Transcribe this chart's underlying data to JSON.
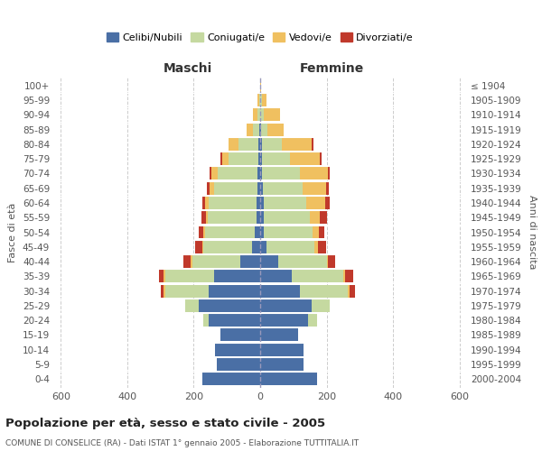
{
  "age_groups": [
    "0-4",
    "5-9",
    "10-14",
    "15-19",
    "20-24",
    "25-29",
    "30-34",
    "35-39",
    "40-44",
    "45-49",
    "50-54",
    "55-59",
    "60-64",
    "65-69",
    "70-74",
    "75-79",
    "80-84",
    "85-89",
    "90-94",
    "95-99",
    "100+"
  ],
  "birth_years": [
    "2000-2004",
    "1995-1999",
    "1990-1994",
    "1985-1989",
    "1980-1984",
    "1975-1979",
    "1970-1974",
    "1965-1969",
    "1960-1964",
    "1955-1959",
    "1950-1954",
    "1945-1949",
    "1940-1944",
    "1935-1939",
    "1930-1934",
    "1925-1929",
    "1920-1924",
    "1915-1919",
    "1910-1914",
    "1905-1909",
    "≤ 1904"
  ],
  "colors": {
    "celibi": "#4a6fa5",
    "coniugati": "#c5d9a0",
    "vedovi": "#f0c060",
    "divorziati": "#c0392b"
  },
  "maschi": {
    "celibi": [
      175,
      130,
      135,
      120,
      155,
      185,
      155,
      140,
      60,
      25,
      15,
      12,
      10,
      8,
      8,
      5,
      5,
      2,
      0,
      0,
      0
    ],
    "coniugati": [
      0,
      0,
      0,
      0,
      15,
      40,
      130,
      145,
      145,
      145,
      150,
      145,
      145,
      130,
      120,
      90,
      60,
      20,
      8,
      2,
      0
    ],
    "vedovi": [
      0,
      0,
      0,
      0,
      0,
      0,
      5,
      5,
      5,
      5,
      5,
      5,
      10,
      15,
      20,
      20,
      30,
      20,
      15,
      5,
      0
    ],
    "divorziati": [
      0,
      0,
      0,
      0,
      0,
      0,
      10,
      15,
      20,
      20,
      15,
      15,
      10,
      8,
      5,
      5,
      0,
      0,
      0,
      0,
      0
    ]
  },
  "femmine": {
    "celibi": [
      170,
      130,
      130,
      115,
      145,
      155,
      120,
      95,
      55,
      18,
      12,
      10,
      10,
      8,
      5,
      5,
      5,
      2,
      0,
      0,
      0
    ],
    "coniugati": [
      0,
      0,
      0,
      0,
      25,
      55,
      145,
      155,
      145,
      145,
      145,
      140,
      130,
      120,
      115,
      85,
      60,
      20,
      10,
      5,
      0
    ],
    "vedovi": [
      0,
      0,
      0,
      0,
      0,
      0,
      5,
      5,
      5,
      10,
      20,
      30,
      55,
      70,
      85,
      90,
      90,
      50,
      50,
      15,
      2
    ],
    "divorziati": [
      0,
      0,
      0,
      0,
      0,
      0,
      15,
      25,
      20,
      25,
      15,
      20,
      15,
      10,
      5,
      5,
      5,
      0,
      0,
      0,
      0
    ]
  },
  "title": "Popolazione per età, sesso e stato civile - 2005",
  "subtitle": "COMUNE DI CONSELICE (RA) - Dati ISTAT 1° gennaio 2005 - Elaborazione TUTTITALIA.IT",
  "xlabel_left": "Maschi",
  "xlabel_right": "Femmine",
  "ylabel_left": "Fasce di età",
  "ylabel_right": "Anni di nascita",
  "xlim": 620,
  "legend_labels": [
    "Celibi/Nubili",
    "Coniugati/e",
    "Vedovi/e",
    "Divorziati/e"
  ],
  "background_color": "#ffffff",
  "grid_color": "#cccccc"
}
